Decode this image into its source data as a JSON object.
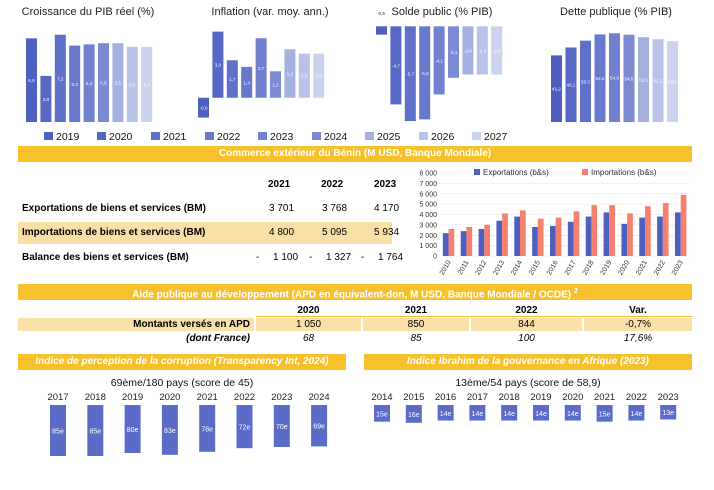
{
  "mini_charts": {
    "legend_years": [
      "2019",
      "2020",
      "2021",
      "2022",
      "2023",
      "2024",
      "2025",
      "2026",
      "2027"
    ],
    "colors": [
      "#4e5fbf",
      "#5667c4",
      "#5f70c8",
      "#6878cb",
      "#7180cf",
      "#7c8ad3",
      "#a5b0e0",
      "#b9c2e7",
      "#ccd3ee"
    ]
  },
  "chart_data": [
    {
      "type": "bar",
      "title": "Croissance du PIB réel (%)",
      "categories": [
        "2019",
        "2020",
        "2021",
        "2022",
        "2023",
        "2024",
        "2025",
        "2026",
        "2027"
      ],
      "values": [
        6.9,
        3.8,
        7.2,
        6.3,
        6.4,
        6.5,
        6.5,
        6.2,
        6.2
      ],
      "labels": [
        "6,9",
        "3,8",
        "7,2",
        "6,3",
        "6,4",
        "6,5",
        "6,5",
        "6,2",
        "6,2"
      ],
      "ylim": [
        0,
        8
      ]
    },
    {
      "type": "bar",
      "title": "Inflation (var. moy. ann.)",
      "categories": [
        "2019",
        "2020",
        "2021",
        "2022",
        "2023",
        "2024",
        "2025",
        "2026",
        "2027"
      ],
      "values": [
        -0.9,
        3.0,
        1.7,
        1.4,
        2.7,
        1.2,
        2.2,
        2.0,
        2.0
      ],
      "labels": [
        "-0,9",
        "3,0",
        "1,7",
        "1,4",
        "2,7",
        "1,2",
        "2,2",
        "2,0",
        "2,0"
      ],
      "ylim": [
        -1.1,
        3.3
      ]
    },
    {
      "type": "bar",
      "title": "Solde public (% PIB)",
      "categories": [
        "2019",
        "2020",
        "2021",
        "2022",
        "2023",
        "2024",
        "2025",
        "2026",
        "2027"
      ],
      "values": [
        -0.5,
        -4.7,
        -5.7,
        -5.6,
        -4.1,
        -3.1,
        -2.9,
        -2.9,
        -2.9
      ],
      "labels": [
        "-0,5",
        "-4,7",
        "-5,7",
        "-5,6",
        "-4,1",
        "-3,1",
        "-2,9",
        "-2,9",
        "-2,9"
      ],
      "ylim": [
        -6.0,
        0.5
      ]
    },
    {
      "type": "bar",
      "title": "Dette publique (% PIB)",
      "categories": [
        "2019",
        "2020",
        "2021",
        "2022",
        "2023",
        "2024",
        "2025",
        "2026",
        "2027"
      ],
      "values": [
        41.2,
        46.1,
        50.3,
        54.2,
        54.9,
        54.0,
        52.5,
        51.2,
        50.0
      ],
      "labels": [
        "41,2",
        "46,1",
        "50,3",
        "54,2",
        "54,9",
        "54,0",
        "52,5",
        "51,2",
        "50,0"
      ],
      "ylim": [
        0,
        60
      ]
    },
    {
      "type": "bar",
      "title": "Commerce extérieur (M USD)",
      "categories": [
        "2010",
        "2011",
        "2012",
        "2013",
        "2014",
        "2015",
        "2016",
        "2017",
        "2018",
        "2019",
        "2020",
        "2021",
        "2022",
        "2023"
      ],
      "series": [
        {
          "name": "Exportations (b&s)",
          "color": "#4e5fbf",
          "values": [
            2200,
            2400,
            2600,
            3400,
            3800,
            2800,
            2900,
            3300,
            3800,
            4200,
            3100,
            3700,
            3800,
            4200
          ]
        },
        {
          "name": "Importations (b&s)",
          "color": "#f4806e",
          "values": [
            2600,
            2800,
            3000,
            4100,
            4400,
            3600,
            3700,
            4300,
            4900,
            4900,
            4100,
            4800,
            5100,
            5900
          ]
        }
      ],
      "yticks": [
        "8 000",
        "7 000",
        "6 000",
        "5 000",
        "4 000",
        "3 000",
        "2 000",
        "1 000",
        "0"
      ],
      "ylim": [
        0,
        8000
      ]
    },
    {
      "type": "bar",
      "title": "Indice de perception de la corruption",
      "categories": [
        "2017",
        "2018",
        "2019",
        "2020",
        "2021",
        "2022",
        "2023",
        "2024"
      ],
      "values": [
        85,
        85,
        80,
        83,
        78,
        72,
        70,
        69
      ],
      "labels": [
        "85e",
        "85e",
        "80e",
        "83e",
        "78e",
        "72e",
        "70e",
        "69e"
      ],
      "ylim": [
        0,
        100
      ]
    },
    {
      "type": "bar",
      "title": "Indice Ibrahim de la gouvernance en Afrique",
      "categories": [
        "2014",
        "2015",
        "2016",
        "2017",
        "2018",
        "2019",
        "2020",
        "2021",
        "2022",
        "2023"
      ],
      "values": [
        15,
        16,
        14,
        14,
        14,
        14,
        14,
        15,
        14,
        13
      ],
      "labels": [
        "15e",
        "16e",
        "14e",
        "14e",
        "14e",
        "14e",
        "14e",
        "15e",
        "14e",
        "13e"
      ],
      "ylim": [
        0,
        54
      ]
    }
  ],
  "trade": {
    "banner": "Commerce extérieur du Bénin (M USD, Banque Mondiale)",
    "years": [
      "2021",
      "2022",
      "2023"
    ],
    "rows": [
      {
        "label": "Exportations de biens et services (BM)",
        "values": [
          "3 701",
          "3 768",
          "4 170"
        ]
      },
      {
        "label": "Importations de biens et services (BM)",
        "values": [
          "4 800",
          "5 095",
          "5 934"
        ]
      },
      {
        "label": "Balance des biens et services (BM)",
        "values": [
          "-",
          "1 100",
          "-",
          "1 327",
          "-",
          "1 764"
        ]
      }
    ]
  },
  "apd": {
    "banner": "Aide publique au développement (APD en équivalent-don, M USD, Banque Mondiale / OCDE) ",
    "sup": "2",
    "years": [
      "2020",
      "2021",
      "2022"
    ],
    "var_label": "Var.",
    "row1_label": "Montants versés en APD",
    "row1": [
      "1 050",
      "850",
      "844",
      "-0,7%"
    ],
    "row2_label": "(dont France)",
    "row2": [
      "68",
      "85",
      "100",
      "17,6%"
    ]
  },
  "corruption": {
    "banner": "Indice de perception de la corruption (Transparency Int, 2024)",
    "subtitle": "69ème/180 pays (score de 45)"
  },
  "ibrahim": {
    "banner": "Indice Ibrahim de la gouvernance en Afrique (2023)",
    "subtitle": "13ème/54 pays (score de 58,9)"
  }
}
